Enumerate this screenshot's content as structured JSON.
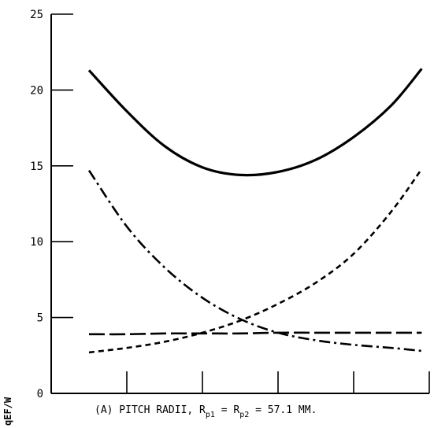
{
  "chart_data": {
    "type": "line",
    "ylabel": "qEF/W",
    "caption": {
      "prefix": "(A) PITCH RADII, R",
      "sub1": "p1",
      "mid": " = R",
      "sub2": "p2",
      "suffix": " = 57.1 MM."
    },
    "ylim": [
      0,
      25
    ],
    "yticks": [
      0,
      5,
      10,
      15,
      20,
      25
    ],
    "xlim": [
      0,
      5
    ],
    "xticks": [
      1,
      2,
      3,
      4,
      5
    ],
    "x_tick_labels_shown": false,
    "grid": false,
    "legend": "none",
    "series": [
      {
        "style": "solid",
        "x": [
          0.5,
          1.0,
          1.5,
          2.0,
          2.5,
          3.0,
          3.5,
          4.0,
          4.5,
          4.9
        ],
        "y": [
          21.3,
          18.6,
          16.3,
          14.9,
          14.4,
          14.6,
          15.4,
          16.9,
          19.0,
          21.4
        ]
      },
      {
        "style": "dash-dot",
        "x": [
          0.5,
          1.0,
          1.5,
          2.0,
          2.5,
          3.0,
          3.5,
          4.0,
          4.5,
          4.9
        ],
        "y": [
          14.7,
          11.0,
          8.3,
          6.3,
          4.9,
          4.0,
          3.5,
          3.2,
          3.0,
          2.8
        ]
      },
      {
        "style": "short-dash",
        "x": [
          0.5,
          1.0,
          1.5,
          2.0,
          2.5,
          3.0,
          3.5,
          4.0,
          4.5,
          4.9
        ],
        "y": [
          2.7,
          3.0,
          3.4,
          4.0,
          4.8,
          5.9,
          7.3,
          9.2,
          12.0,
          14.8
        ]
      },
      {
        "style": "long-dash",
        "x": [
          0.5,
          1.0,
          1.5,
          2.0,
          2.5,
          3.0,
          3.5,
          4.0,
          4.5,
          4.9
        ],
        "y": [
          3.9,
          3.9,
          3.95,
          3.95,
          3.95,
          4.0,
          4.0,
          4.0,
          4.0,
          4.0
        ]
      }
    ]
  }
}
